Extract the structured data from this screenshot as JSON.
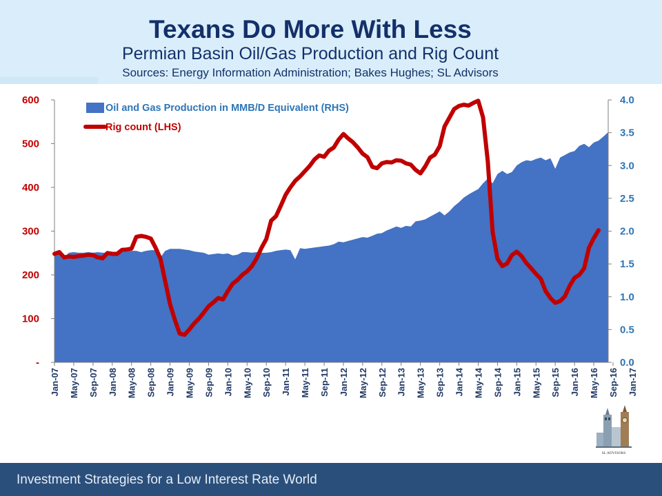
{
  "header": {
    "title": "Texans Do More With Less",
    "subtitle": "Permian Basin Oil/Gas Production and Rig Count",
    "sources": "Sources: Energy Information Administration; Bakes Hughes; SL Advisors"
  },
  "footer": {
    "text": "Investment Strategies for a Low Interest Rate World"
  },
  "logo": {
    "text": "SL ADVISORS"
  },
  "colors": {
    "production": "#4472c4",
    "rigs": "#c00000",
    "left_axis": "#c00000",
    "right_axis": "#2e75b6",
    "title": "#14306a",
    "footer_bg": "#2a4f7b",
    "header_bg": "#d9eefa"
  },
  "chart_data": {
    "type": "area+line",
    "x_tick_labels": [
      "Jan-07",
      "May-07",
      "Sep-07",
      "Jan-08",
      "May-08",
      "Sep-08",
      "Jan-09",
      "May-09",
      "Sep-09",
      "Jan-10",
      "May-10",
      "Sep-10",
      "Jan-11",
      "May-11",
      "Sep-11",
      "Jan-12",
      "May-12",
      "Sep-12",
      "Jan-13",
      "May-13",
      "Sep-13",
      "Jan-14",
      "May-14",
      "Sep-14",
      "Jan-15",
      "May-15",
      "Sep-15",
      "Jan-16",
      "May-16",
      "Sep-16",
      "Jan-17"
    ],
    "x_start": "Jan-07",
    "x_end": "Mar-17",
    "left_axis": {
      "ylim": [
        0,
        600
      ],
      "ticks": [
        0,
        100,
        200,
        300,
        400,
        500,
        600
      ],
      "tick_labels": [
        "-",
        "100",
        "200",
        "300",
        "400",
        "500",
        "600"
      ]
    },
    "right_axis": {
      "ylim": [
        0,
        4
      ],
      "ticks": [
        0,
        0.5,
        1,
        1.5,
        2,
        2.5,
        3,
        3.5,
        4
      ],
      "tick_labels": [
        "0.0",
        "0.5",
        "1.0",
        "1.5",
        "2.0",
        "2.5",
        "3.0",
        "3.5",
        "4.0"
      ]
    },
    "legend_position": "top-left",
    "series": [
      {
        "name": "Oil and Gas Production in MMB/D Equivalent (RHS)",
        "axis": "right",
        "type": "area",
        "values": [
          1.69,
          1.68,
          1.6,
          1.67,
          1.68,
          1.67,
          1.67,
          1.68,
          1.67,
          1.68,
          1.67,
          1.67,
          1.66,
          1.68,
          1.68,
          1.69,
          1.7,
          1.7,
          1.68,
          1.7,
          1.71,
          1.71,
          1.6,
          1.7,
          1.73,
          1.73,
          1.73,
          1.72,
          1.71,
          1.69,
          1.68,
          1.67,
          1.64,
          1.65,
          1.66,
          1.65,
          1.66,
          1.63,
          1.64,
          1.68,
          1.68,
          1.67,
          1.68,
          1.67,
          1.67,
          1.68,
          1.7,
          1.71,
          1.72,
          1.71,
          1.57,
          1.74,
          1.73,
          1.74,
          1.75,
          1.76,
          1.77,
          1.78,
          1.8,
          1.84,
          1.83,
          1.85,
          1.87,
          1.89,
          1.91,
          1.9,
          1.93,
          1.96,
          1.97,
          2.01,
          2.04,
          2.07,
          2.05,
          2.08,
          2.07,
          2.15,
          2.16,
          2.18,
          2.22,
          2.26,
          2.3,
          2.24,
          2.3,
          2.38,
          2.44,
          2.51,
          2.56,
          2.6,
          2.64,
          2.73,
          2.8,
          2.73,
          2.87,
          2.92,
          2.87,
          2.9,
          3.0,
          3.05,
          3.08,
          3.07,
          3.1,
          3.12,
          3.08,
          3.11,
          2.95,
          3.12,
          3.16,
          3.2,
          3.22,
          3.3,
          3.33,
          3.28,
          3.35,
          3.38,
          3.44,
          3.51
        ]
      },
      {
        "name": "Rig count (LHS)",
        "axis": "left",
        "type": "line",
        "values": [
          248,
          252,
          240,
          242,
          241,
          243,
          244,
          246,
          245,
          240,
          238,
          250,
          248,
          248,
          257,
          258,
          260,
          287,
          289,
          287,
          283,
          262,
          237,
          185,
          133,
          97,
          66,
          63,
          75,
          89,
          100,
          114,
          128,
          137,
          147,
          144,
          163,
          180,
          188,
          200,
          208,
          220,
          238,
          262,
          282,
          324,
          334,
          358,
          383,
          400,
          415,
          425,
          437,
          449,
          464,
          473,
          470,
          484,
          491,
          509,
          522,
          512,
          503,
          491,
          477,
          469,
          447,
          444,
          455,
          458,
          457,
          462,
          461,
          455,
          452,
          440,
          432,
          448,
          468,
          475,
          494,
          539,
          559,
          579,
          586,
          589,
          587,
          593,
          598,
          560,
          459,
          298,
          237,
          220,
          226,
          245,
          253,
          243,
          227,
          215,
          202,
          191,
          163,
          147,
          136,
          140,
          151,
          175,
          193,
          200,
          215,
          262,
          284,
          302
        ]
      }
    ]
  }
}
